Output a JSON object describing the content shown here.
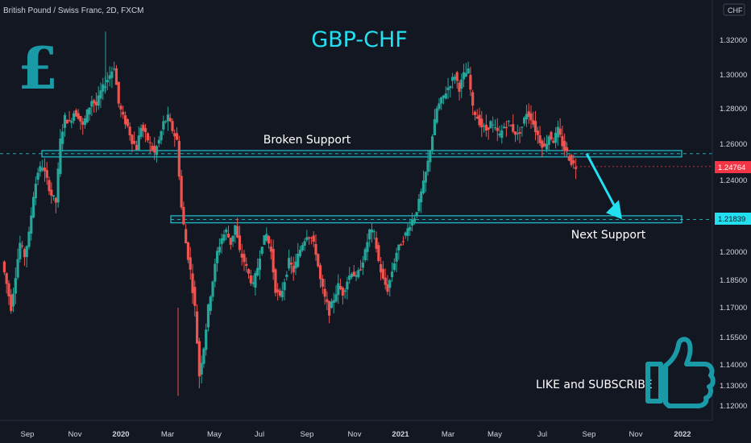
{
  "header": {
    "symbol_text": "British Pound / Swiss Franc, 2D, FXCM",
    "currency": "CHF"
  },
  "title": "GBP-CHF",
  "annotations": {
    "broken_support": "Broken Support",
    "next_support": "Next Support",
    "like_subscribe": "LIKE and SUBSCRIBE",
    "pound_symbol": "£"
  },
  "price_badges": {
    "current": "1.24764",
    "support_level": "1.21839"
  },
  "colors": {
    "background": "#131722",
    "up_candle": "#26a69a",
    "down_candle": "#ef5350",
    "accent": "#22e0f0",
    "current_badge": "#f23645",
    "teal_icon": "#1a9aa6"
  },
  "chart_data": {
    "type": "candlestick",
    "title": "GBP-CHF",
    "ylim": [
      1.11,
      1.333
    ],
    "y_ticks": [
      "1.32000",
      "1.30000",
      "1.28000",
      "1.26000",
      "1.24000",
      "1.22000",
      "1.20000",
      "1.18500",
      "1.17000",
      "1.15500",
      "1.14000",
      "1.13000",
      "1.12000"
    ],
    "x_ticks": [
      {
        "label": "Sep",
        "year": false
      },
      {
        "label": "Nov",
        "year": false
      },
      {
        "label": "2020",
        "year": true
      },
      {
        "label": "Mar",
        "year": false
      },
      {
        "label": "May",
        "year": false
      },
      {
        "label": "Jul",
        "year": false
      },
      {
        "label": "Sep",
        "year": false
      },
      {
        "label": "Nov",
        "year": false
      },
      {
        "label": "2021",
        "year": true
      },
      {
        "label": "Mar",
        "year": false
      },
      {
        "label": "May",
        "year": false
      },
      {
        "label": "Jul",
        "year": false
      },
      {
        "label": "Sep",
        "year": false
      },
      {
        "label": "Nov",
        "year": false
      },
      {
        "label": "2022",
        "year": true
      }
    ],
    "zones": [
      {
        "name": "Broken Support",
        "low": 1.2535,
        "high": 1.2565
      },
      {
        "name": "Next Support",
        "low": 1.2165,
        "high": 1.2205
      }
    ],
    "current_price": 1.24764,
    "support_level": 1.21839,
    "arrow": {
      "from": [
        1.2548
      ],
      "to_price": 1.2185
    },
    "close_path": [
      1.195,
      1.183,
      1.17,
      1.188,
      1.205,
      1.198,
      1.21,
      1.232,
      1.245,
      1.248,
      1.24,
      1.232,
      1.228,
      1.262,
      1.275,
      1.272,
      1.278,
      1.276,
      1.27,
      1.278,
      1.285,
      1.282,
      1.29,
      1.295,
      1.3,
      1.305,
      1.283,
      1.275,
      1.27,
      1.262,
      1.258,
      1.27,
      1.265,
      1.26,
      1.255,
      1.262,
      1.272,
      1.275,
      1.268,
      1.262,
      1.225,
      1.205,
      1.19,
      1.17,
      1.135,
      1.15,
      1.17,
      1.185,
      1.2,
      1.208,
      1.212,
      1.205,
      1.215,
      1.2,
      1.195,
      1.188,
      1.182,
      1.192,
      1.205,
      1.21,
      1.2,
      1.18,
      1.175,
      1.185,
      1.195,
      1.19,
      1.198,
      1.205,
      1.21,
      1.208,
      1.2,
      1.185,
      1.175,
      1.168,
      1.175,
      1.182,
      1.178,
      1.185,
      1.19,
      1.186,
      1.192,
      1.2,
      1.212,
      1.21,
      1.195,
      1.185,
      1.18,
      1.19,
      1.2,
      1.205,
      1.21,
      1.216,
      1.22,
      1.228,
      1.238,
      1.25,
      1.265,
      1.28,
      1.285,
      1.29,
      1.295,
      1.3,
      1.292,
      1.3,
      1.302,
      1.28,
      1.275,
      1.27,
      1.268,
      1.272,
      1.268,
      1.265,
      1.27,
      1.272,
      1.268,
      1.265,
      1.27,
      1.278,
      1.275,
      1.268,
      1.262,
      1.258,
      1.265,
      1.262,
      1.268,
      1.26,
      1.255,
      1.25,
      1.2476
    ]
  }
}
